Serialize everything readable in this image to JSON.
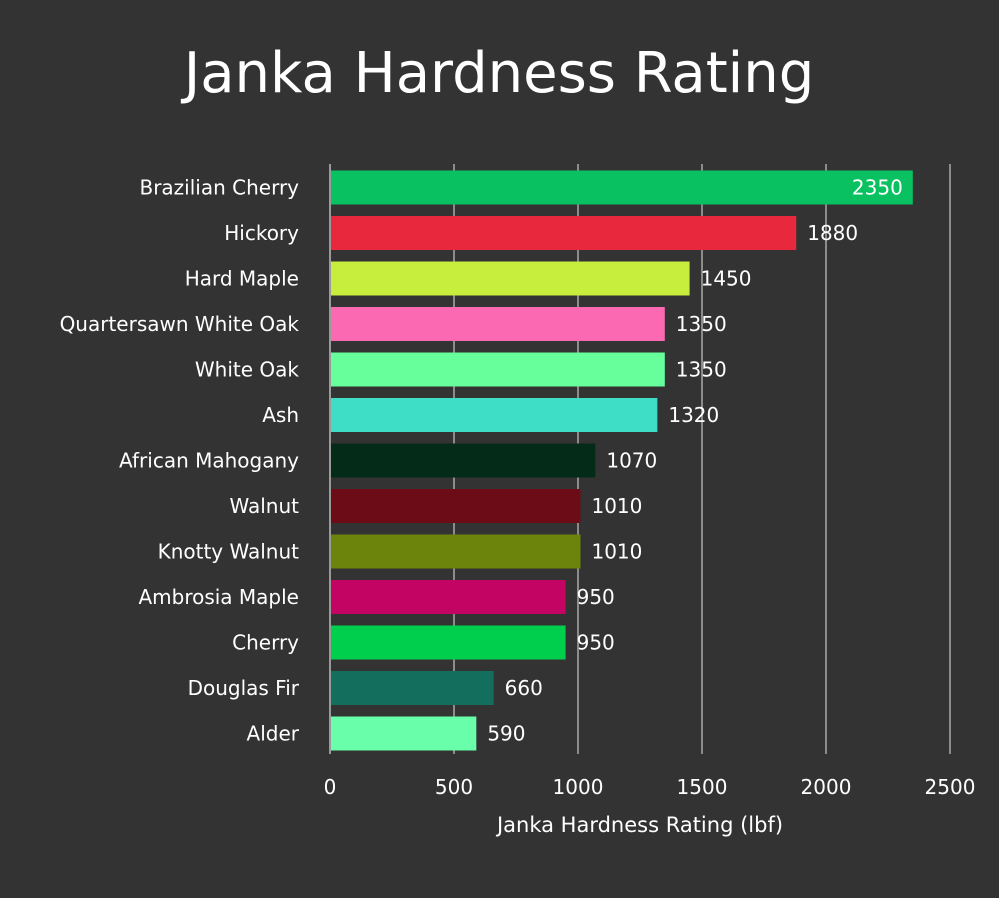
{
  "chart_data": {
    "type": "bar",
    "orientation": "horizontal",
    "title": "Janka Hardness Rating",
    "xlabel": "Janka Hardness Rating (lbf)",
    "ylabel": "",
    "xlim": [
      0,
      2500
    ],
    "xticks": [
      0,
      500,
      1000,
      1500,
      2000,
      2500
    ],
    "grid": true,
    "categories": [
      "Brazilian Cherry",
      "Hickory",
      "Hard Maple",
      "Quartersawn White Oak",
      "White Oak",
      "Ash",
      "African Mahogany",
      "Walnut",
      "Knotty Walnut",
      "Ambrosia Maple",
      "Cherry",
      "Douglas Fir",
      "Alder"
    ],
    "values": [
      2350,
      1880,
      1450,
      1350,
      1350,
      1320,
      1070,
      1010,
      1010,
      950,
      950,
      660,
      590
    ],
    "data_labels": [
      "2350",
      "1880",
      "1450",
      "1350",
      "1350",
      "1320",
      "1070",
      "1010",
      "1010",
      "950",
      "950",
      "660",
      "590"
    ],
    "colors": [
      "#09c160",
      "#e8293d",
      "#c7ee3c",
      "#fb69b2",
      "#66ff9c",
      "#3ddec5",
      "#042a18",
      "#6b0c17",
      "#6c840b",
      "#c30462",
      "#00cf4e",
      "#136e5d",
      "#68feaa"
    ]
  }
}
